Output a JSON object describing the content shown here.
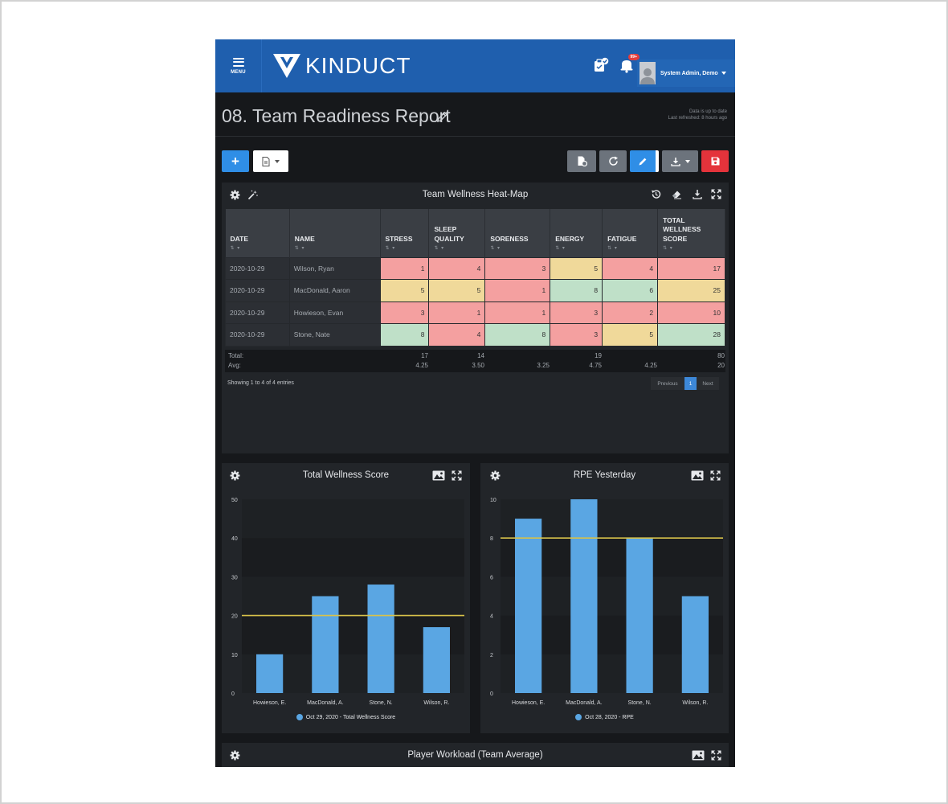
{
  "header": {
    "menu_label": "MENU",
    "brand": "KINDUCT",
    "notification_count": "99+",
    "user_name": "System Admin, Demo"
  },
  "page": {
    "title": "08. Team Readiness Report",
    "status_line1": "Data is up to date",
    "status_line2": "Last refreshed: 8 hours ago"
  },
  "toolbar": {
    "add_label": "+"
  },
  "heatmap": {
    "title": "Team Wellness Heat-Map",
    "columns": [
      {
        "label": "DATE"
      },
      {
        "label": "NAME"
      },
      {
        "label": "STRESS"
      },
      {
        "label": "SLEEP QUALITY"
      },
      {
        "label": "SORENESS"
      },
      {
        "label": "ENERGY"
      },
      {
        "label": "FATIGUE"
      },
      {
        "label": "TOTAL WELLNESS SCORE"
      }
    ],
    "rows": [
      {
        "date": "2020-10-29",
        "name": "Wilson, Ryan",
        "values": [
          "1",
          "4",
          "3",
          "5",
          "4",
          "17"
        ],
        "colors": [
          "red",
          "red",
          "red",
          "yel",
          "red",
          "red"
        ]
      },
      {
        "date": "2020-10-29",
        "name": "MacDonald, Aaron",
        "values": [
          "5",
          "5",
          "1",
          "8",
          "6",
          "25"
        ],
        "colors": [
          "yel",
          "yel",
          "red",
          "grn",
          "grn",
          "yel"
        ]
      },
      {
        "date": "2020-10-29",
        "name": "Howieson, Evan",
        "values": [
          "3",
          "1",
          "1",
          "3",
          "2",
          "10"
        ],
        "colors": [
          "red",
          "red",
          "red",
          "red",
          "red",
          "red"
        ]
      },
      {
        "date": "2020-10-29",
        "name": "Stone, Nate",
        "values": [
          "8",
          "4",
          "8",
          "3",
          "5",
          "28"
        ],
        "colors": [
          "grn",
          "red",
          "grn",
          "red",
          "yel",
          "grn"
        ]
      }
    ],
    "total_label": "Total:",
    "avg_label": "Avg:",
    "totals": [
      "17",
      "14",
      "",
      "19",
      "",
      "80"
    ],
    "avgs": [
      "4.25",
      "3.50",
      "3.25",
      "4.75",
      "4.25",
      "20"
    ],
    "showing": "Showing 1 to 4 of 4 entries",
    "pager": {
      "prev": "Previous",
      "page": "1",
      "next": "Next"
    }
  },
  "chart_data": [
    {
      "type": "bar",
      "title": "Total Wellness Score",
      "categories": [
        "Howieson, E.",
        "MacDonald, A.",
        "Stone, N.",
        "Wilson, R."
      ],
      "series": [
        {
          "name": "Oct 29, 2020 - Total Wellness Score",
          "values": [
            10,
            25,
            28,
            17
          ]
        }
      ],
      "ylim": [
        0,
        50
      ],
      "yticks": [
        0,
        10,
        20,
        30,
        40,
        50
      ],
      "reference_line": 20,
      "legend": "bottom",
      "bar_color": "#5aa6e3",
      "reference_color": "#d8c24a"
    },
    {
      "type": "bar",
      "title": "RPE Yesterday",
      "categories": [
        "Howieson, E.",
        "MacDonald, A.",
        "Stone, N.",
        "Wilson, R."
      ],
      "series": [
        {
          "name": "Oct 28, 2020 - RPE",
          "values": [
            9,
            10,
            8,
            5
          ]
        }
      ],
      "ylim": [
        0,
        10
      ],
      "yticks": [
        0,
        2,
        4,
        6,
        8,
        10
      ],
      "reference_line": 8,
      "legend": "bottom",
      "bar_color": "#5aa6e3",
      "reference_color": "#d8c24a"
    }
  ],
  "workload": {
    "title": "Player Workload (Team Average)"
  },
  "colors": {
    "header_blue": "#1f5fae",
    "primary": "#2f8ee6",
    "danger": "#e4333b",
    "heat_red": "#f4a0a0",
    "heat_yellow": "#f0d99a",
    "heat_green": "#bfe0c8"
  }
}
